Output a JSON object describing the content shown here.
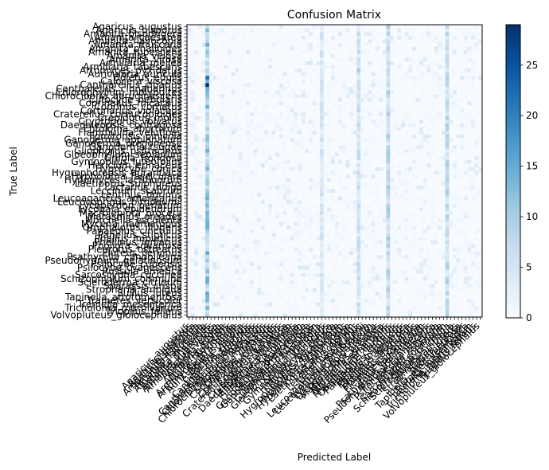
{
  "chart_data": {
    "type": "heatmap",
    "title": "Confusion Matrix",
    "xlabel": "Predicted Label",
    "ylabel": "True Label",
    "colormap": "Blues",
    "colorbar": {
      "min": 0,
      "max": 29,
      "ticks": [
        0,
        5,
        10,
        15,
        20,
        25
      ]
    },
    "n_classes": 80,
    "labels": [
      "Agaricus_augustus",
      "Agaricus_bisporus",
      "Amanita_bisporigera",
      "Amanita_caesarea",
      "Amanita_flavoconia",
      "Amanita_muscaria",
      "Amanita_phalloides",
      "Amanita_rubescens",
      "Amanita_velosa",
      "Amanita_virosa",
      "Armillaria_mellea",
      "Armillaria_tabescens",
      "Artomyces_pyxidatus",
      "Auricularia_auricula",
      "Boletus_edulis",
      "Calocera_viscosa",
      "Cantharellus_cibarius",
      "Cantharellus_cinnabarinus",
      "Chlorophyllum_molybdites",
      "Chlorociboria_aeruginascens",
      "Clitocybe_nebularis",
      "Coprinellus_micaceus",
      "Coprinus_comatus",
      "Cortinarius_violaceus",
      "Craterellus_cornucopioides",
      "Crepidotus_mollis",
      "Cryptoporus_volvatus",
      "Daedaleopsis_confragosa",
      "Entoloma_abortivum",
      "Flammulina_velutipes",
      "Fomitopsis_pinicola",
      "Ganoderma_applanatum",
      "Ganoderma_oregonense",
      "Ganoderma_tsugae",
      "Gliophorus_psittacinus",
      "Gloeophyllum_sepiarium",
      "Grifola_frondosa",
      "Gymnopilus_luteofolius",
      "Hericium_erinaceus",
      "Hygrocybe_conica",
      "Hygrophoropsis_aurantiaca",
      "Hypholoma_fasciculare",
      "Hypomyces_lactifluorum",
      "Laetiporus_sulphureus",
      "Lactarius_indigo",
      "Leccinum_scabrum",
      "Lentinus_tigrinus",
      "Leucoagaricus_americanus",
      "Leucocoprinus_birnbaumii",
      "Lycoperdon_perlatum",
      "Lycogala_epidendrum",
      "Macrolepiota_procera",
      "Marasmius_oreades",
      "Morchella_esculenta",
      "Mycena_haematopus",
      "Omphalotus_illudens",
      "Panaeolus_cinctulus",
      "Panellus_stipticus",
      "Phallus_impudicus",
      "Phellinus_igniarius",
      "Pholiota_squarrosa",
      "Pleurotus_ostreatus",
      "Pluteus_cervinus",
      "Psathyrella_candolleana",
      "Pseudohydnum_gelatinosum",
      "Psilocybe_cubensis",
      "Psilocybe_cyanescens",
      "Russula_emetica",
      "Sarcoscypha_coccinea",
      "Schizophyllum_commune",
      "Scleroderma_citrinum",
      "Sparassis_crispa",
      "Stropharia_ambigua",
      "Suillus_luteus",
      "Tapinella_atrotomentosa",
      "Trametes_versicolor",
      "Tremella_mesenterica",
      "Tricholoma_murrillianum",
      "Tylopilus_felleus",
      "Volvopluteus_gloiocephalus"
    ],
    "hot_columns": [
      {
        "index": 5,
        "level": 0.42
      },
      {
        "index": 36,
        "level": 0.18
      },
      {
        "index": 46,
        "level": 0.22
      },
      {
        "index": 54,
        "level": 0.3
      },
      {
        "index": 70,
        "level": 0.28
      }
    ],
    "peak_cells": [
      {
        "row": 14,
        "col": 5,
        "value": 22
      },
      {
        "row": 16,
        "col": 5,
        "value": 29
      },
      {
        "row": 15,
        "col": 5,
        "value": 14
      },
      {
        "row": 7,
        "col": 5,
        "value": 12
      },
      {
        "row": 31,
        "col": 5,
        "value": 12
      },
      {
        "row": 44,
        "col": 54,
        "value": 11
      },
      {
        "row": 12,
        "col": 46,
        "value": 10
      },
      {
        "row": 7,
        "col": 46,
        "value": 8
      }
    ]
  }
}
